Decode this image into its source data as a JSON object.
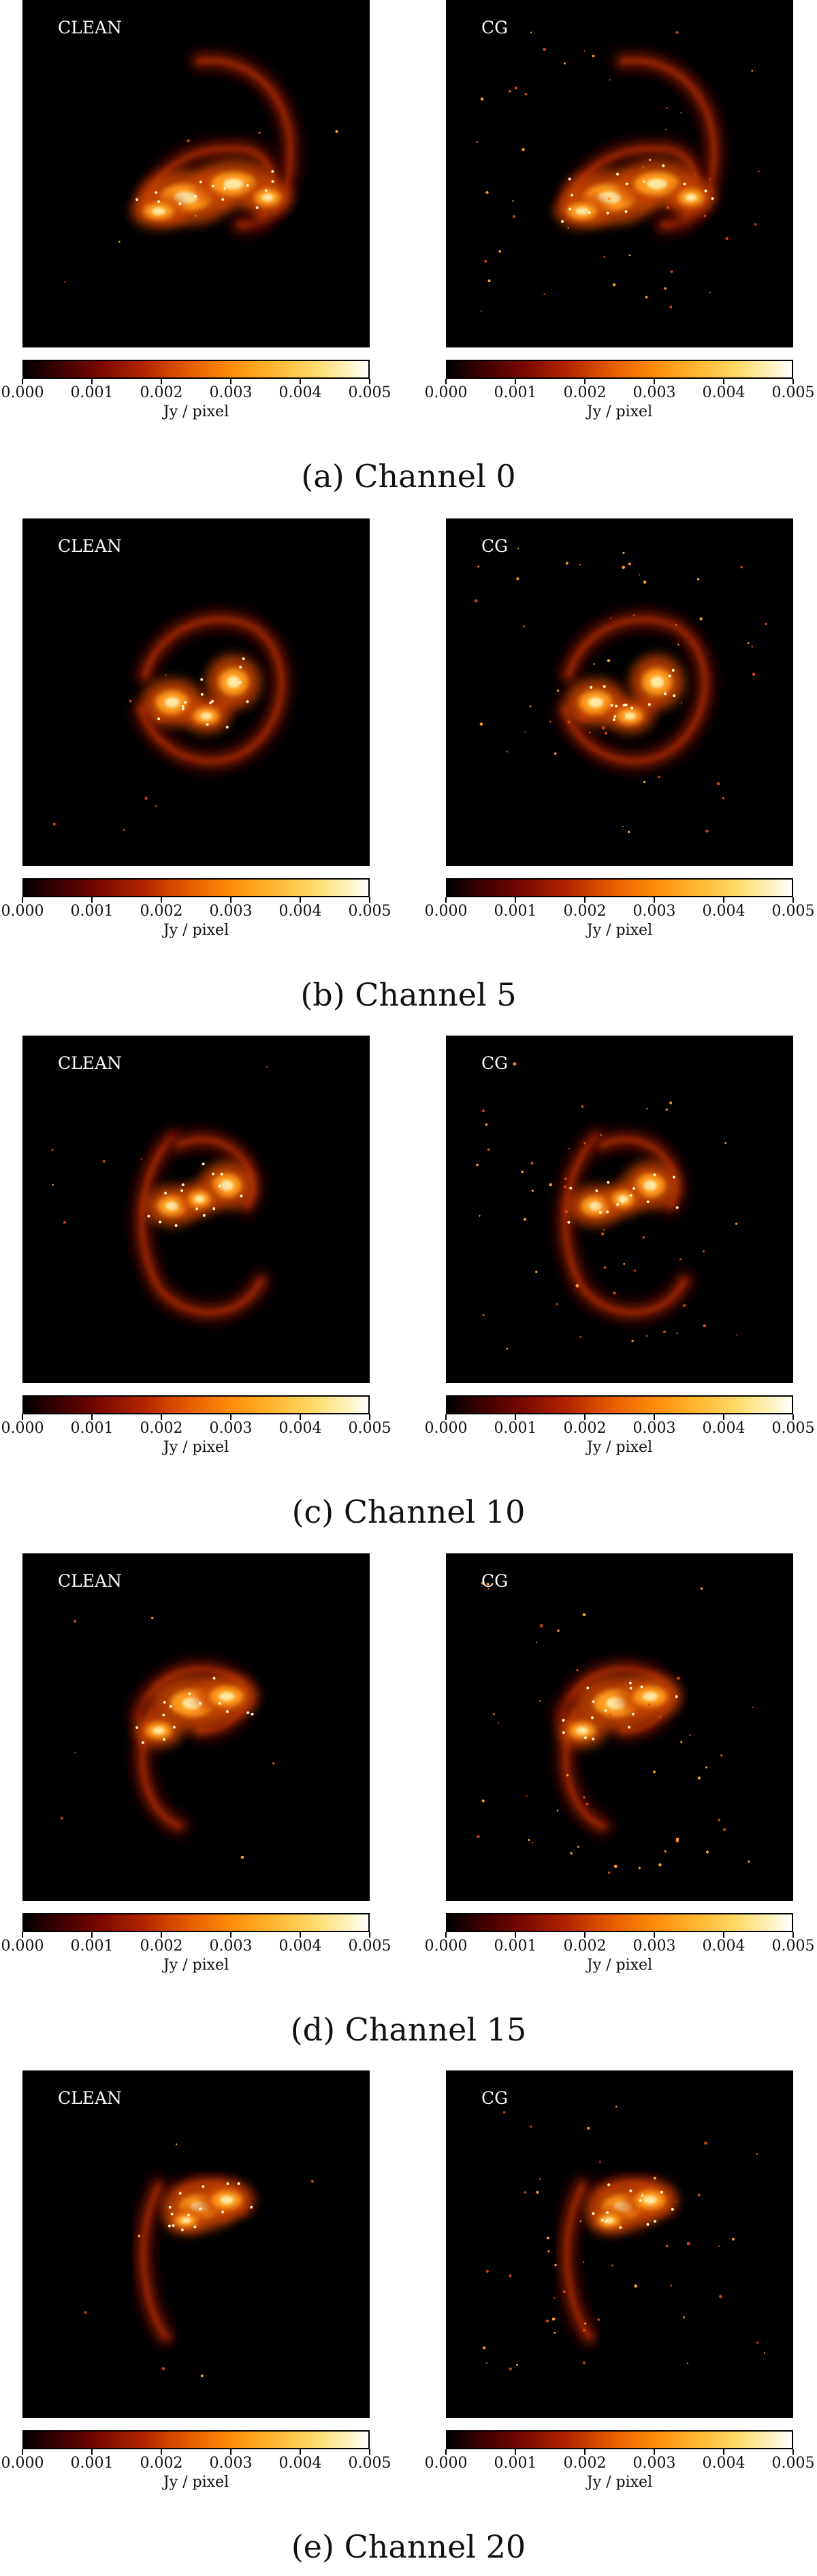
{
  "colorbar": {
    "ticks": [
      "0.000",
      "0.001",
      "0.002",
      "0.003",
      "0.004",
      "0.005"
    ],
    "unit": "Jy / pixel"
  },
  "method_labels": [
    "CLEAN",
    "CG"
  ],
  "colormap": "afmhot",
  "rows": [
    {
      "caption": "(a) Channel 0"
    },
    {
      "caption": "(b) Channel 5"
    },
    {
      "caption": "(c) Channel 10"
    },
    {
      "caption": "(d) Channel 15"
    },
    {
      "caption": "(e) Channel 20"
    }
  ]
}
